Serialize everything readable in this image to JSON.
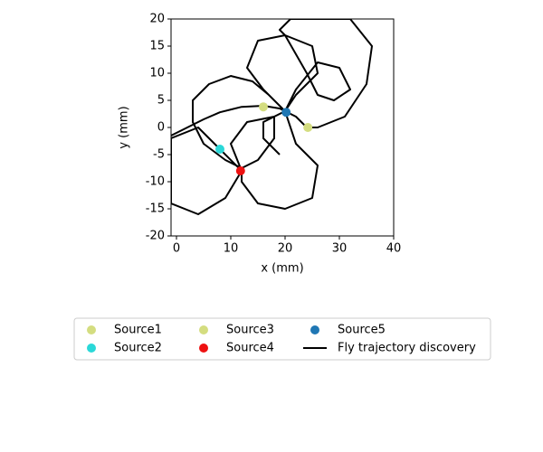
{
  "chart_data": {
    "type": "scatter",
    "xlabel": "x (mm)",
    "ylabel": "y (mm)",
    "xlim": [
      -1,
      40
    ],
    "ylim": [
      -20,
      20
    ],
    "xticks": [
      0,
      10,
      20,
      30,
      40
    ],
    "yticks": [
      -20,
      -15,
      -10,
      -5,
      0,
      5,
      10,
      15,
      20
    ],
    "series": [
      {
        "name": "Source1",
        "color": "#d4dd80",
        "x": [
          16
        ],
        "y": [
          3.8
        ]
      },
      {
        "name": "Source2",
        "color": "#2ad8d8",
        "x": [
          8
        ],
        "y": [
          -4
        ]
      },
      {
        "name": "Source3",
        "color": "#d4dd80",
        "x": [
          24.2
        ],
        "y": [
          0
        ]
      },
      {
        "name": "Source4",
        "color": "#ee1111",
        "x": [
          11.8
        ],
        "y": [
          -8
        ]
      },
      {
        "name": "Source5",
        "color": "#1f77b4",
        "x": [
          20.2
        ],
        "y": [
          2.8
        ]
      },
      {
        "name": "Fly trajectory discovery",
        "type": "line",
        "color": "#000000",
        "x": [
          -1,
          2,
          5,
          8,
          12,
          16,
          19,
          20,
          17,
          14,
          10,
          6,
          3,
          3,
          5,
          9,
          12,
          15,
          18,
          18,
          20,
          22,
          26,
          25,
          20,
          15,
          12,
          12,
          8,
          4,
          -1,
          -1,
          4,
          9,
          12,
          10,
          13,
          18,
          20,
          16,
          13,
          15,
          20,
          25,
          26,
          22,
          20,
          22,
          26,
          30,
          32,
          29,
          26,
          24,
          20,
          19,
          21,
          22,
          32,
          36,
          35,
          31,
          26,
          24,
          22,
          20,
          16,
          16,
          19
        ],
        "y": [
          -1.5,
          0,
          1.5,
          2.8,
          3.8,
          4,
          3.5,
          3,
          6,
          8.5,
          9.5,
          8,
          5,
          1,
          -3,
          -6,
          -7.5,
          -6,
          -2,
          2,
          3,
          -3,
          -7,
          -13,
          -15,
          -14,
          -10,
          -8,
          -4,
          0,
          -2,
          -14,
          -16,
          -13,
          -8,
          -3,
          1,
          2,
          3,
          7,
          11,
          16,
          17,
          15,
          10,
          6,
          3,
          7,
          12,
          11,
          7,
          5,
          6,
          10,
          17,
          18,
          20,
          20,
          20,
          15,
          8,
          2,
          0,
          0,
          2,
          3,
          1,
          -2,
          -5
        ]
      }
    ]
  }
}
